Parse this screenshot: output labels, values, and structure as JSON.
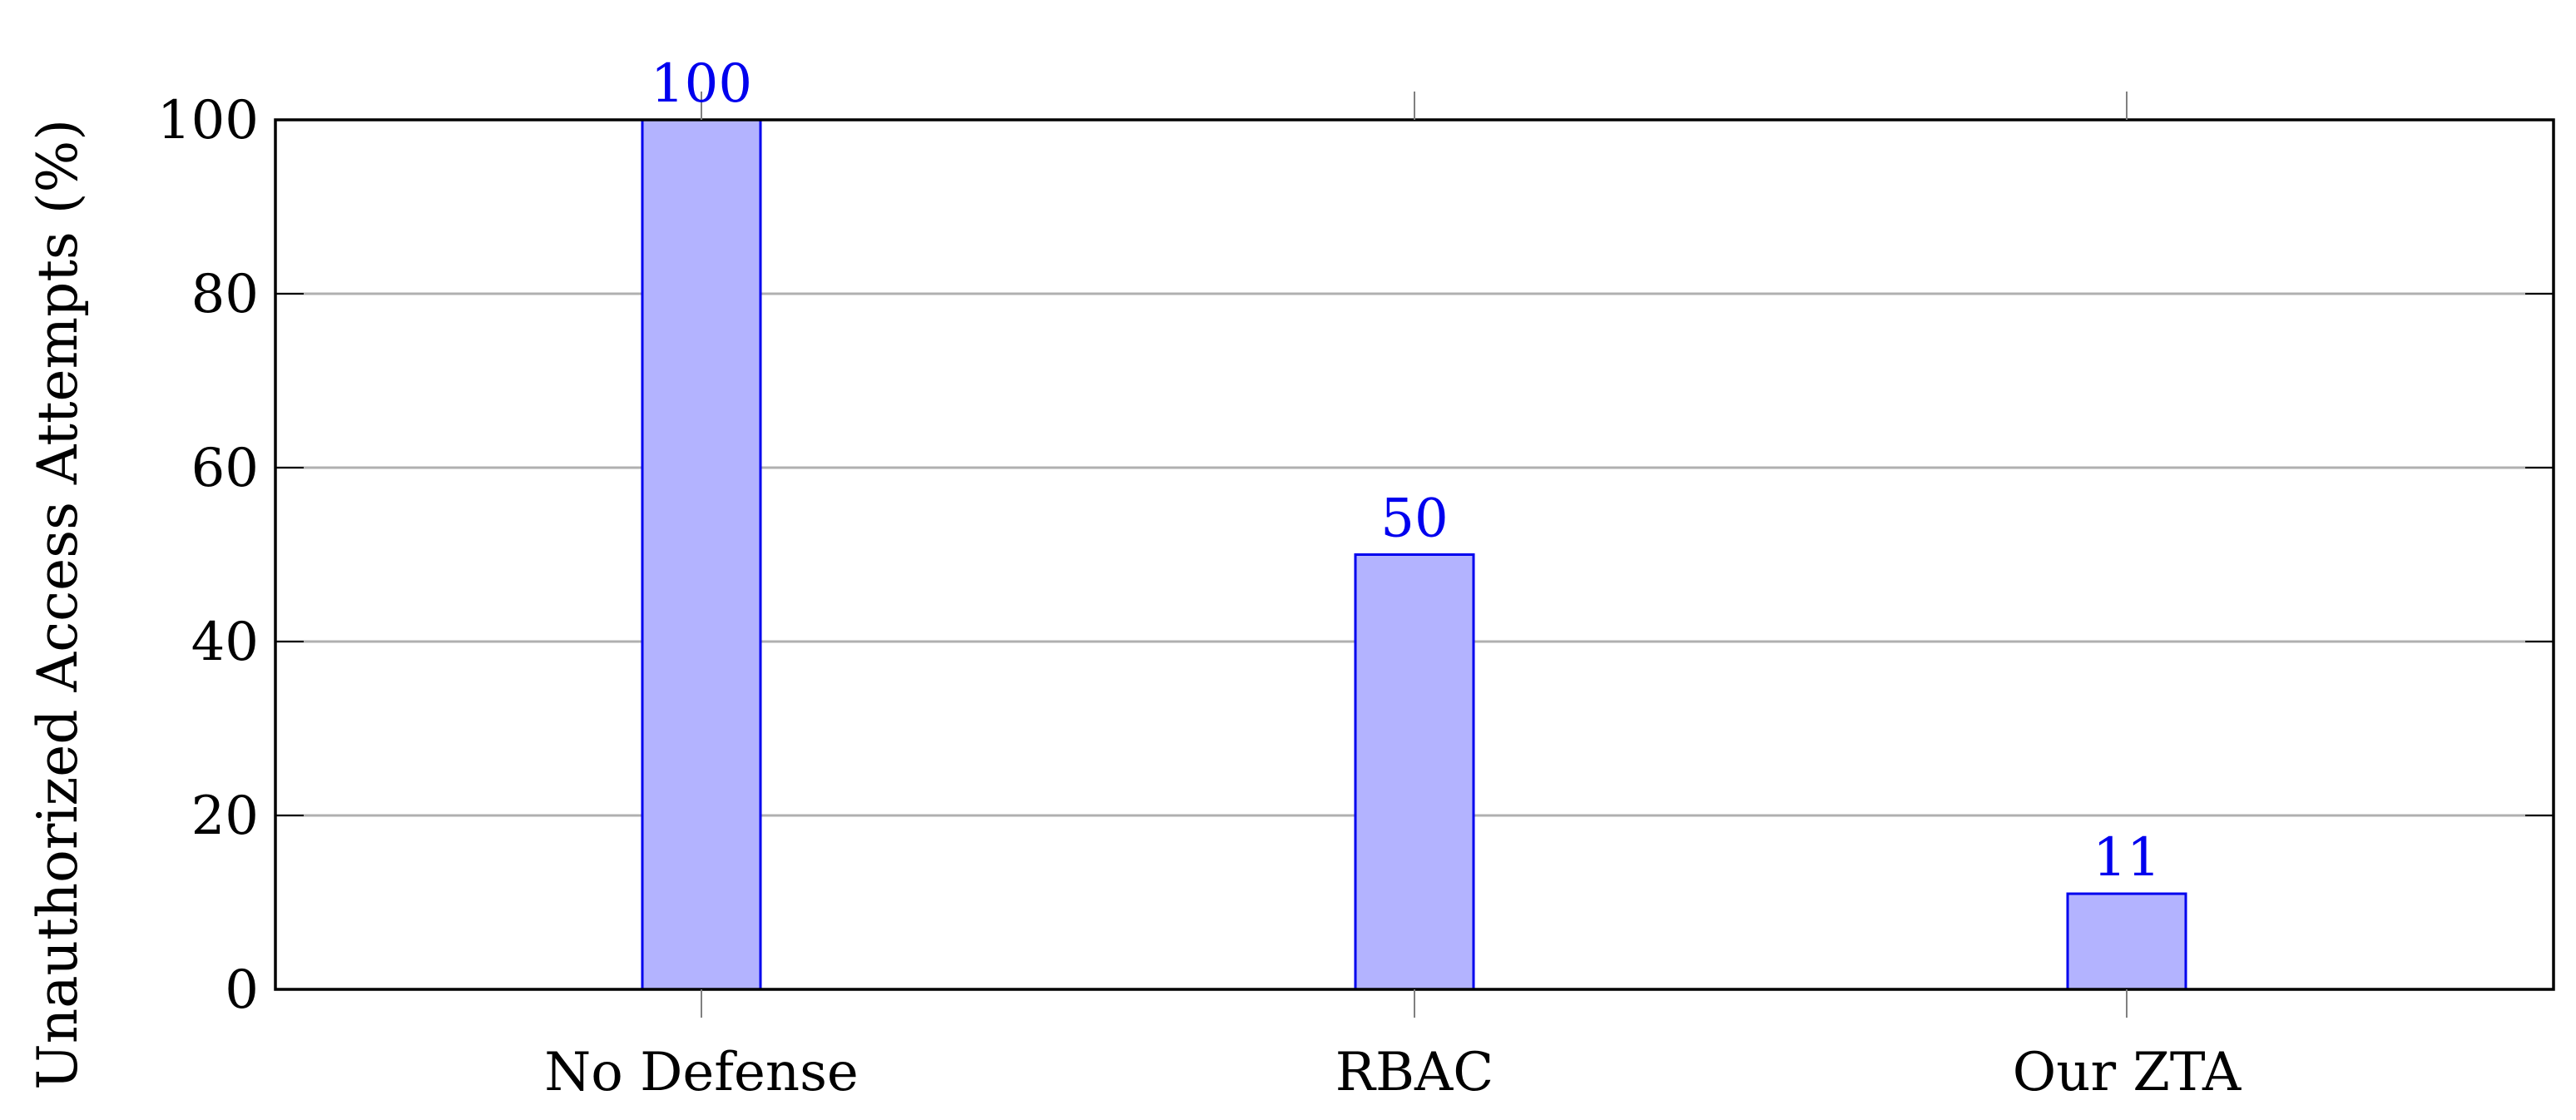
{
  "chart_data": {
    "type": "bar",
    "title": "",
    "xlabel": "",
    "ylabel": "Unauthorized Access Attempts (%)",
    "categories": [
      "No Defense",
      "RBAC",
      "Our ZTA"
    ],
    "series": [
      {
        "values": [
          100,
          50,
          11
        ],
        "data_labels": [
          "100",
          "50",
          "11"
        ]
      }
    ],
    "ylim": [
      0,
      100
    ],
    "yticks": [
      0,
      20,
      40,
      60,
      80,
      100
    ],
    "ytick_labels": [
      "0",
      "20",
      "40",
      "60",
      "80",
      "100"
    ],
    "grid": "horizontal",
    "legend": "none",
    "colors": {
      "bar_fill": "#b3b3ff",
      "bar_stroke": "#0000ee",
      "data_label": "#0000ee",
      "grid": "#b0b0b0",
      "axis": "#000000",
      "text": "#000000"
    }
  }
}
